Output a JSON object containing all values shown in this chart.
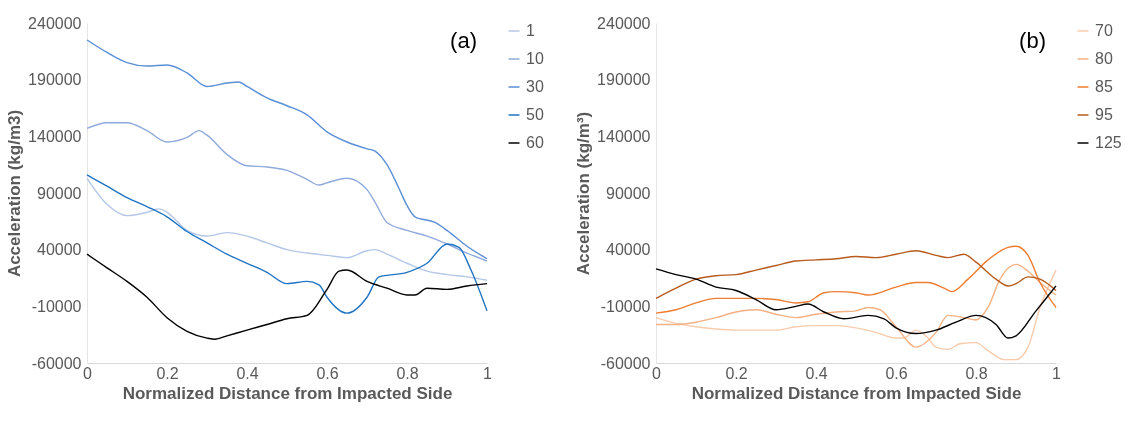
{
  "chart_data": [
    {
      "type": "line",
      "title": "(a)",
      "xlabel": "Normalized Distance from Impacted Side",
      "ylabel": "Acceleration (kg/m3)",
      "xlim": [
        0,
        1
      ],
      "xticks": [
        0,
        0.2,
        0.4,
        0.6,
        0.8,
        1
      ],
      "ylim": [
        -60000,
        240000
      ],
      "yticks": [
        -60000,
        -10000,
        40000,
        90000,
        140000,
        190000,
        240000
      ],
      "grid": false,
      "legend": "right",
      "line_style": "solid",
      "series": [
        {
          "name": "1",
          "color": "#b4c7e7",
          "x": [
            0,
            0.05,
            0.1,
            0.15,
            0.18,
            0.2,
            0.25,
            0.3,
            0.35,
            0.4,
            0.45,
            0.5,
            0.55,
            0.6,
            0.65,
            0.7,
            0.72,
            0.75,
            0.8,
            0.85,
            0.9,
            0.95,
            1
          ],
          "values": [
            103000,
            80000,
            70000,
            73000,
            76000,
            73000,
            57000,
            52000,
            55000,
            52000,
            46000,
            40000,
            37000,
            35000,
            33000,
            39000,
            40000,
            36000,
            28000,
            21000,
            18000,
            16000,
            13000
          ]
        },
        {
          "name": "10",
          "color": "#8faadc",
          "x": [
            0,
            0.05,
            0.1,
            0.15,
            0.2,
            0.25,
            0.28,
            0.3,
            0.35,
            0.4,
            0.45,
            0.5,
            0.55,
            0.58,
            0.6,
            0.65,
            0.7,
            0.72,
            0.75,
            0.8,
            0.85,
            0.9,
            0.95,
            1
          ],
          "values": [
            147000,
            152000,
            152000,
            145000,
            135000,
            139000,
            145000,
            141000,
            124000,
            114000,
            113000,
            110000,
            102000,
            97000,
            99000,
            103000,
            93000,
            82000,
            64000,
            57000,
            52000,
            45000,
            37000,
            30000
          ]
        },
        {
          "name": "30",
          "color": "#5b8fd6",
          "x": [
            0,
            0.05,
            0.1,
            0.15,
            0.2,
            0.25,
            0.3,
            0.35,
            0.38,
            0.4,
            0.45,
            0.5,
            0.55,
            0.6,
            0.65,
            0.7,
            0.72,
            0.75,
            0.78,
            0.8,
            0.82,
            0.87,
            0.9,
            0.95,
            1
          ],
          "values": [
            225000,
            214000,
            205000,
            202000,
            203000,
            196000,
            184000,
            187000,
            188000,
            184000,
            174000,
            167000,
            159000,
            144000,
            135000,
            129000,
            127000,
            115000,
            94000,
            79000,
            69000,
            64000,
            57000,
            43000,
            32000
          ]
        },
        {
          "name": "50",
          "color": "#1f74c4",
          "x": [
            0,
            0.05,
            0.1,
            0.15,
            0.2,
            0.25,
            0.3,
            0.35,
            0.4,
            0.45,
            0.5,
            0.55,
            0.58,
            0.6,
            0.65,
            0.7,
            0.73,
            0.8,
            0.85,
            0.9,
            0.93,
            0.96,
            1
          ],
          "values": [
            106000,
            96000,
            86000,
            78000,
            69000,
            56000,
            46000,
            36000,
            28000,
            20000,
            10000,
            12000,
            9000,
            -2000,
            -16000,
            -2000,
            16000,
            20000,
            28000,
            45000,
            42000,
            22000,
            -14000
          ]
        },
        {
          "name": "60",
          "color": "#000000",
          "x": [
            0,
            0.05,
            0.1,
            0.15,
            0.2,
            0.25,
            0.3,
            0.32,
            0.35,
            0.4,
            0.45,
            0.5,
            0.55,
            0.6,
            0.63,
            0.65,
            0.7,
            0.75,
            0.8,
            0.82,
            0.85,
            0.9,
            0.95,
            1
          ],
          "values": [
            36000,
            24000,
            12000,
            -2000,
            -20000,
            -32000,
            -38000,
            -39000,
            -36000,
            -31000,
            -26000,
            -21000,
            -18000,
            5000,
            21000,
            22000,
            12000,
            6000,
            0,
            0,
            6000,
            5000,
            8000,
            10000
          ]
        }
      ]
    },
    {
      "type": "line",
      "title": "(b)",
      "xlabel": "Normalized Distance from Impacted Side",
      "ylabel": "Acceleration (kg/m³)",
      "xlim": [
        0,
        1
      ],
      "xticks": [
        0,
        0.2,
        0.4,
        0.6,
        0.8,
        1
      ],
      "ylim": [
        -60000,
        240000
      ],
      "yticks": [
        -60000,
        -10000,
        40000,
        90000,
        140000,
        190000,
        240000
      ],
      "grid": false,
      "legend": "right",
      "line_style": "solid",
      "series": [
        {
          "name": "70",
          "color": "#f8cbad",
          "x": [
            0,
            0.05,
            0.1,
            0.15,
            0.2,
            0.3,
            0.35,
            0.4,
            0.45,
            0.5,
            0.55,
            0.6,
            0.62,
            0.65,
            0.68,
            0.7,
            0.73,
            0.76,
            0.8,
            0.83,
            0.87,
            0.9,
            0.93,
            0.96,
            1
          ],
          "values": [
            -20000,
            -25000,
            -28000,
            -30000,
            -31000,
            -31000,
            -28000,
            -27000,
            -27000,
            -29000,
            -33000,
            -38000,
            -38000,
            -31000,
            -38000,
            -46000,
            -48000,
            -43000,
            -42000,
            -49000,
            -57000,
            -57000,
            -46000,
            -11000,
            22000
          ]
        },
        {
          "name": "80",
          "color": "#f4b183",
          "x": [
            0,
            0.05,
            0.1,
            0.15,
            0.2,
            0.25,
            0.3,
            0.35,
            0.4,
            0.45,
            0.5,
            0.53,
            0.56,
            0.6,
            0.65,
            0.7,
            0.73,
            0.77,
            0.8,
            0.83,
            0.86,
            0.9,
            0.93,
            0.96,
            1
          ],
          "values": [
            -26000,
            -26000,
            -24000,
            -20000,
            -15000,
            -13000,
            -17000,
            -20000,
            -17000,
            -15000,
            -14000,
            -11000,
            -13000,
            -28000,
            -46000,
            -33000,
            -18000,
            -20000,
            -22000,
            -11000,
            14000,
            27000,
            21000,
            11000,
            0
          ]
        },
        {
          "name": "85",
          "color": "#ed7d31",
          "x": [
            0,
            0.05,
            0.1,
            0.15,
            0.2,
            0.25,
            0.3,
            0.35,
            0.38,
            0.42,
            0.45,
            0.5,
            0.53,
            0.6,
            0.65,
            0.68,
            0.72,
            0.74,
            0.78,
            0.83,
            0.88,
            0.9,
            0.93,
            0.96,
            1
          ],
          "values": [
            -16000,
            -13000,
            -7000,
            -3000,
            -3000,
            -3000,
            -4000,
            -7000,
            -6000,
            2000,
            3000,
            2000,
            0,
            7000,
            11000,
            11000,
            6000,
            3000,
            14000,
            31000,
            42000,
            43000,
            35000,
            11000,
            -11000
          ]
        },
        {
          "name": "95",
          "color": "#b85a1c",
          "x": [
            0,
            0.05,
            0.1,
            0.15,
            0.2,
            0.25,
            0.3,
            0.35,
            0.4,
            0.45,
            0.5,
            0.55,
            0.6,
            0.65,
            0.7,
            0.73,
            0.77,
            0.8,
            0.85,
            0.88,
            0.9,
            0.93,
            0.96,
            1
          ],
          "values": [
            -3000,
            6000,
            14000,
            17000,
            18000,
            22000,
            26000,
            30000,
            31000,
            32000,
            34000,
            33000,
            36000,
            39000,
            35000,
            33000,
            36000,
            29000,
            14000,
            8000,
            10000,
            16000,
            14000,
            4000
          ]
        },
        {
          "name": "125",
          "color": "#000000",
          "x": [
            0,
            0.05,
            0.1,
            0.15,
            0.2,
            0.25,
            0.3,
            0.35,
            0.38,
            0.42,
            0.47,
            0.53,
            0.57,
            0.6,
            0.65,
            0.7,
            0.75,
            0.8,
            0.85,
            0.88,
            0.9,
            0.95,
            1
          ],
          "values": [
            23000,
            18000,
            14000,
            7000,
            4000,
            -4000,
            -13000,
            -10000,
            -8000,
            -15000,
            -21000,
            -18000,
            -21000,
            -29000,
            -34000,
            -31000,
            -24000,
            -18000,
            -26000,
            -38000,
            -36000,
            -14000,
            8000
          ]
        }
      ]
    }
  ]
}
